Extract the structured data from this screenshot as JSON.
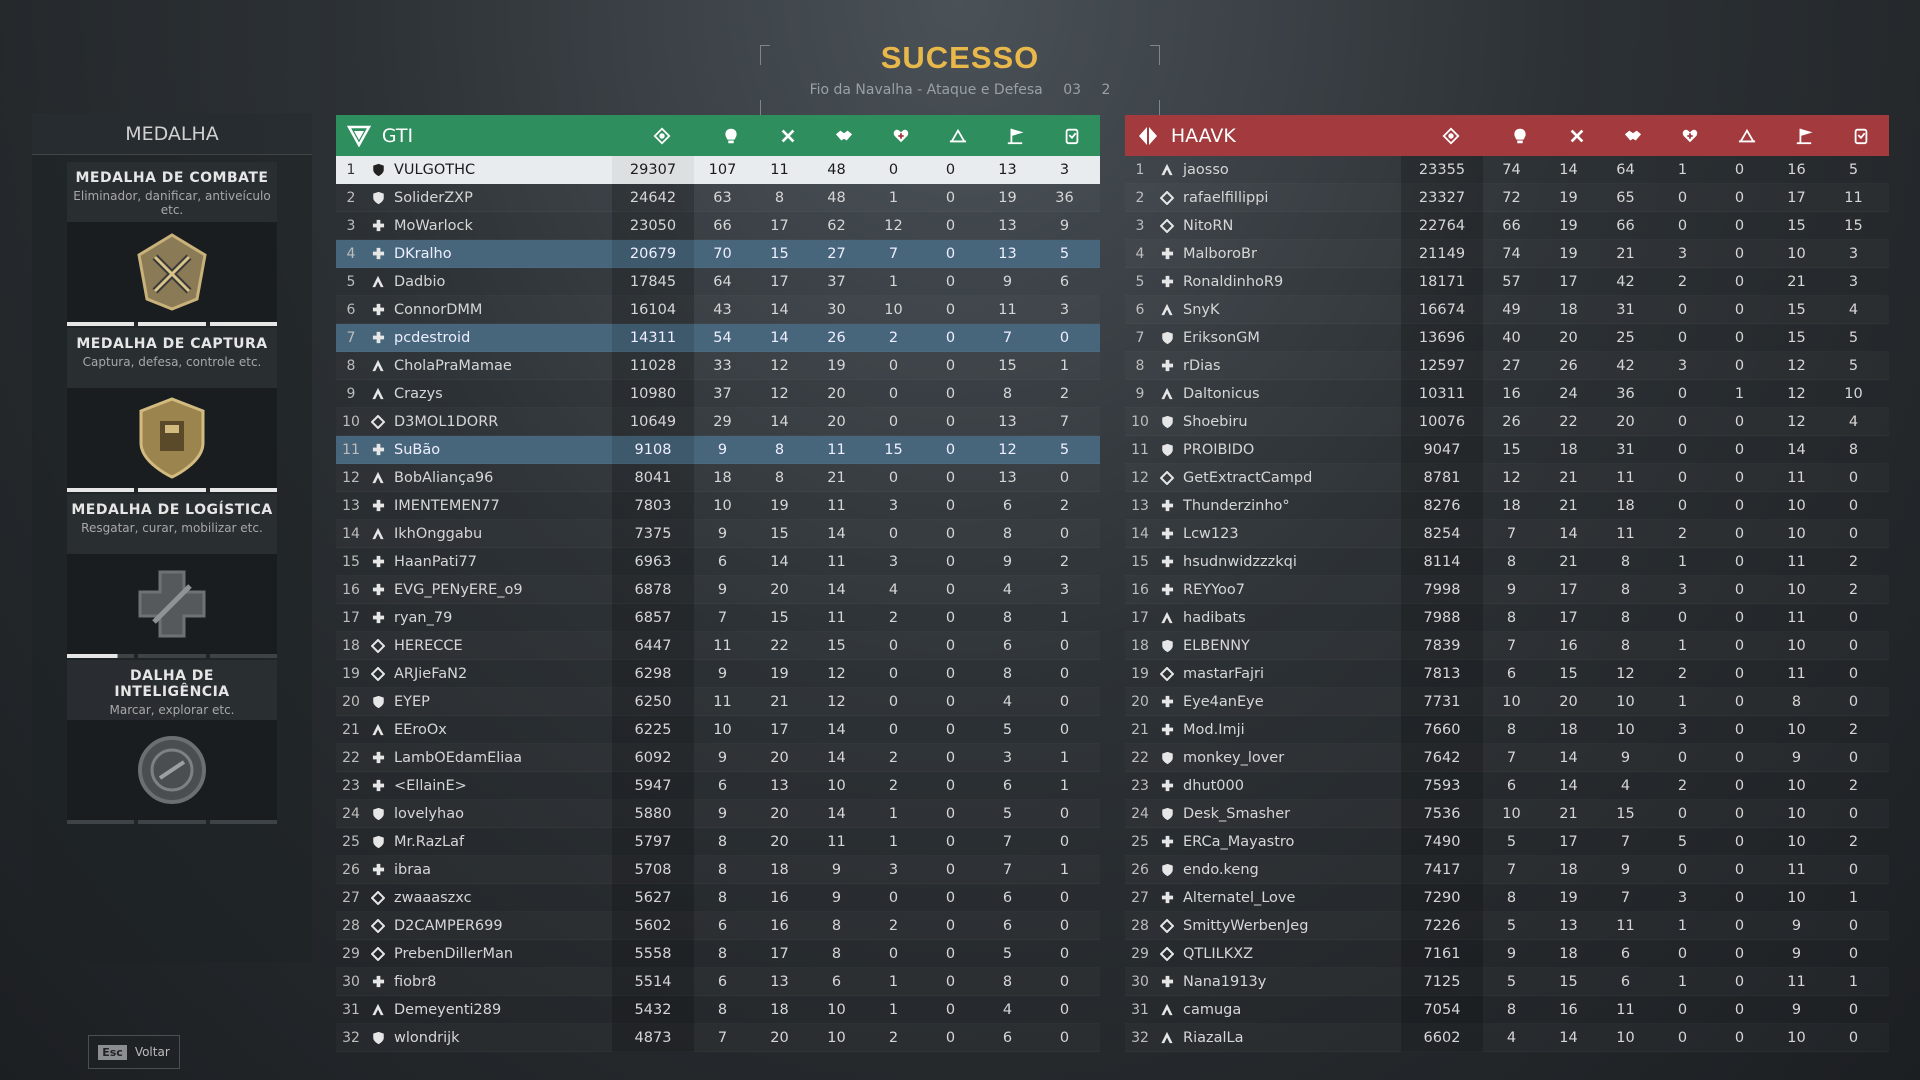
{
  "header": {
    "title": "SUCESSO",
    "mode": "Fio da Navalha - Ataque e Defesa",
    "score_a": "03",
    "score_b": "2"
  },
  "medals": {
    "header": "MEDALHA",
    "cards": [
      {
        "title": "MEDALHA DE COMBATE",
        "desc": "Eliminador, danificar, antiveículo etc.",
        "icon": "combat-medal-icon",
        "progress": [
          1,
          1,
          1
        ]
      },
      {
        "title": "MEDALHA DE CAPTURA",
        "desc": "Captura, defesa, controle etc.",
        "icon": "capture-medal-icon",
        "progress": [
          1,
          1,
          1
        ]
      },
      {
        "title": "MEDALHA DE LOGÍSTICA",
        "desc": "Resgatar, curar, mobilizar etc.",
        "icon": "logistics-medal-icon",
        "progress": [
          0.75,
          0,
          0
        ]
      },
      {
        "title": "DALHA DE INTELIGÊNCIA",
        "desc": "Marcar, explorar etc.",
        "icon": "intel-medal-icon",
        "progress": [
          0,
          0,
          0
        ]
      }
    ]
  },
  "footer": {
    "esc_key": "Esc",
    "back_label": "Voltar"
  },
  "columns": [
    "score-icon",
    "kills-icon",
    "deaths-icon",
    "assists-icon",
    "revives-icon",
    "captures-icon",
    "objective-icon",
    "vehicle-icon"
  ],
  "teams": [
    {
      "name": "GTI",
      "color": "#2f8e5e",
      "players": [
        {
          "rank": "1",
          "cls": "shield",
          "name": "VULGOTHC",
          "stats": [
            "29307",
            "107",
            "11",
            "48",
            "0",
            "0",
            "13",
            "3"
          ],
          "hl": "self"
        },
        {
          "rank": "2",
          "cls": "shield",
          "name": "SoliderZXP",
          "stats": [
            "24642",
            "63",
            "8",
            "48",
            "1",
            "0",
            "19",
            "36"
          ]
        },
        {
          "rank": "3",
          "cls": "medic",
          "name": "MoWarlock",
          "stats": [
            "23050",
            "66",
            "17",
            "62",
            "12",
            "0",
            "13",
            "9"
          ]
        },
        {
          "rank": "4",
          "cls": "medic",
          "name": "DKralho",
          "stats": [
            "20679",
            "70",
            "15",
            "27",
            "7",
            "0",
            "13",
            "5"
          ],
          "hl": "squad"
        },
        {
          "rank": "5",
          "cls": "assault",
          "name": "Dadbio",
          "stats": [
            "17845",
            "64",
            "17",
            "37",
            "1",
            "0",
            "9",
            "6"
          ]
        },
        {
          "rank": "6",
          "cls": "medic",
          "name": "ConnorDMM",
          "stats": [
            "16104",
            "43",
            "14",
            "30",
            "10",
            "0",
            "11",
            "3"
          ]
        },
        {
          "rank": "7",
          "cls": "medic",
          "name": "pcdestroid",
          "stats": [
            "14311",
            "54",
            "14",
            "26",
            "2",
            "0",
            "7",
            "0"
          ],
          "hl": "squad"
        },
        {
          "rank": "8",
          "cls": "assault",
          "name": "CholaPraMamae",
          "stats": [
            "11028",
            "33",
            "12",
            "19",
            "0",
            "0",
            "15",
            "1"
          ]
        },
        {
          "rank": "9",
          "cls": "assault",
          "name": "Crazys",
          "stats": [
            "10980",
            "37",
            "12",
            "20",
            "0",
            "0",
            "8",
            "2"
          ]
        },
        {
          "rank": "10",
          "cls": "recon",
          "name": "D3MOL1DORR",
          "stats": [
            "10649",
            "29",
            "14",
            "20",
            "0",
            "0",
            "13",
            "7"
          ]
        },
        {
          "rank": "11",
          "cls": "medic",
          "name": "SuBão",
          "stats": [
            "9108",
            "9",
            "8",
            "11",
            "15",
            "0",
            "12",
            "5"
          ],
          "hl": "squad"
        },
        {
          "rank": "12",
          "cls": "assault",
          "name": "BobAliança96",
          "stats": [
            "8041",
            "18",
            "8",
            "21",
            "0",
            "0",
            "13",
            "0"
          ]
        },
        {
          "rank": "13",
          "cls": "medic",
          "name": "IMENTEMEN77",
          "stats": [
            "7803",
            "10",
            "19",
            "11",
            "3",
            "0",
            "6",
            "2"
          ]
        },
        {
          "rank": "14",
          "cls": "assault",
          "name": "IkhOnggabu",
          "stats": [
            "7375",
            "9",
            "15",
            "14",
            "0",
            "0",
            "8",
            "0"
          ]
        },
        {
          "rank": "15",
          "cls": "medic",
          "name": "HaanPati77",
          "stats": [
            "6963",
            "6",
            "14",
            "11",
            "3",
            "0",
            "9",
            "2"
          ]
        },
        {
          "rank": "16",
          "cls": "medic",
          "name": "EVG_PENyERE_o9",
          "stats": [
            "6878",
            "9",
            "20",
            "14",
            "4",
            "0",
            "4",
            "3"
          ]
        },
        {
          "rank": "17",
          "cls": "medic",
          "name": "ryan_79",
          "stats": [
            "6857",
            "7",
            "15",
            "11",
            "2",
            "0",
            "8",
            "1"
          ]
        },
        {
          "rank": "18",
          "cls": "recon",
          "name": "HERECCE",
          "stats": [
            "6447",
            "11",
            "22",
            "15",
            "0",
            "0",
            "6",
            "0"
          ]
        },
        {
          "rank": "19",
          "cls": "recon",
          "name": "ARJieFaN2",
          "stats": [
            "6298",
            "9",
            "19",
            "12",
            "0",
            "0",
            "8",
            "0"
          ]
        },
        {
          "rank": "20",
          "cls": "shield",
          "name": "EYEP",
          "stats": [
            "6250",
            "11",
            "21",
            "12",
            "0",
            "0",
            "4",
            "0"
          ]
        },
        {
          "rank": "21",
          "cls": "assault",
          "name": "EEroOx",
          "stats": [
            "6225",
            "10",
            "17",
            "14",
            "0",
            "0",
            "5",
            "0"
          ]
        },
        {
          "rank": "22",
          "cls": "medic",
          "name": "LambOEdamEliaa",
          "stats": [
            "6092",
            "9",
            "20",
            "14",
            "2",
            "0",
            "3",
            "1"
          ]
        },
        {
          "rank": "23",
          "cls": "medic",
          "name": "<EllainE>",
          "stats": [
            "5947",
            "6",
            "13",
            "10",
            "2",
            "0",
            "6",
            "1"
          ]
        },
        {
          "rank": "24",
          "cls": "shield",
          "name": "lovelyhao",
          "stats": [
            "5880",
            "9",
            "20",
            "14",
            "1",
            "0",
            "5",
            "0"
          ]
        },
        {
          "rank": "25",
          "cls": "shield",
          "name": "Mr.RazLaf",
          "stats": [
            "5797",
            "8",
            "20",
            "11",
            "1",
            "0",
            "7",
            "0"
          ]
        },
        {
          "rank": "26",
          "cls": "medic",
          "name": "ibraa",
          "stats": [
            "5708",
            "8",
            "18",
            "9",
            "3",
            "0",
            "7",
            "1"
          ]
        },
        {
          "rank": "27",
          "cls": "recon",
          "name": "zwaaaszxc",
          "stats": [
            "5627",
            "8",
            "16",
            "9",
            "0",
            "0",
            "6",
            "0"
          ]
        },
        {
          "rank": "28",
          "cls": "recon",
          "name": "D2CAMPER699",
          "stats": [
            "5602",
            "6",
            "16",
            "8",
            "2",
            "0",
            "6",
            "0"
          ]
        },
        {
          "rank": "29",
          "cls": "recon",
          "name": "PrebenDillerMan",
          "stats": [
            "5558",
            "8",
            "17",
            "8",
            "0",
            "0",
            "5",
            "0"
          ]
        },
        {
          "rank": "30",
          "cls": "medic",
          "name": "fiobr8",
          "stats": [
            "5514",
            "6",
            "13",
            "6",
            "1",
            "0",
            "8",
            "0"
          ]
        },
        {
          "rank": "31",
          "cls": "assault",
          "name": "Demeyenti289",
          "stats": [
            "5432",
            "8",
            "18",
            "10",
            "1",
            "0",
            "4",
            "0"
          ]
        },
        {
          "rank": "32",
          "cls": "shield",
          "name": "wlondrijk",
          "stats": [
            "4873",
            "7",
            "20",
            "10",
            "2",
            "0",
            "6",
            "0"
          ]
        }
      ]
    },
    {
      "name": "HAAVK",
      "color": "#a23a3e",
      "players": [
        {
          "rank": "1",
          "cls": "assault",
          "name": "jaosso",
          "stats": [
            "23355",
            "74",
            "14",
            "64",
            "1",
            "0",
            "16",
            "5"
          ]
        },
        {
          "rank": "2",
          "cls": "recon",
          "name": "rafaelfillippi",
          "stats": [
            "23327",
            "72",
            "19",
            "65",
            "0",
            "0",
            "17",
            "11"
          ]
        },
        {
          "rank": "3",
          "cls": "recon",
          "name": "NitoRN",
          "stats": [
            "22764",
            "66",
            "19",
            "66",
            "0",
            "0",
            "15",
            "15"
          ]
        },
        {
          "rank": "4",
          "cls": "medic",
          "name": "MalboroBr",
          "stats": [
            "21149",
            "74",
            "19",
            "21",
            "3",
            "0",
            "10",
            "3"
          ]
        },
        {
          "rank": "5",
          "cls": "medic",
          "name": "RonaldinhoR9",
          "stats": [
            "18171",
            "57",
            "17",
            "42",
            "2",
            "0",
            "21",
            "3"
          ]
        },
        {
          "rank": "6",
          "cls": "assault",
          "name": "SnyK",
          "stats": [
            "16674",
            "49",
            "18",
            "31",
            "0",
            "0",
            "15",
            "4"
          ]
        },
        {
          "rank": "7",
          "cls": "shield",
          "name": "EriksonGM",
          "stats": [
            "13696",
            "40",
            "20",
            "25",
            "0",
            "0",
            "15",
            "5"
          ]
        },
        {
          "rank": "8",
          "cls": "medic",
          "name": "rDias",
          "stats": [
            "12597",
            "27",
            "26",
            "42",
            "3",
            "0",
            "12",
            "5"
          ]
        },
        {
          "rank": "9",
          "cls": "assault",
          "name": "Daltonicus",
          "stats": [
            "10311",
            "16",
            "24",
            "36",
            "0",
            "1",
            "12",
            "10"
          ]
        },
        {
          "rank": "10",
          "cls": "shield",
          "name": "Shoebiru",
          "stats": [
            "10076",
            "26",
            "22",
            "20",
            "0",
            "0",
            "12",
            "4"
          ]
        },
        {
          "rank": "11",
          "cls": "shield",
          "name": "PROIBIDO",
          "stats": [
            "9047",
            "15",
            "18",
            "31",
            "0",
            "0",
            "14",
            "8"
          ]
        },
        {
          "rank": "12",
          "cls": "recon",
          "name": "GetExtractCampd",
          "stats": [
            "8781",
            "12",
            "21",
            "11",
            "0",
            "0",
            "11",
            "0"
          ]
        },
        {
          "rank": "13",
          "cls": "medic",
          "name": "Thunderzinho°",
          "stats": [
            "8276",
            "18",
            "21",
            "18",
            "0",
            "0",
            "10",
            "0"
          ]
        },
        {
          "rank": "14",
          "cls": "medic",
          "name": "Lcw123",
          "stats": [
            "8254",
            "7",
            "14",
            "11",
            "2",
            "0",
            "10",
            "0"
          ]
        },
        {
          "rank": "15",
          "cls": "medic",
          "name": "hsudnwidzzzkqi",
          "stats": [
            "8114",
            "8",
            "21",
            "8",
            "1",
            "0",
            "11",
            "2"
          ]
        },
        {
          "rank": "16",
          "cls": "medic",
          "name": "REYYoo7",
          "stats": [
            "7998",
            "9",
            "17",
            "8",
            "3",
            "0",
            "10",
            "2"
          ]
        },
        {
          "rank": "17",
          "cls": "assault",
          "name": "hadibats",
          "stats": [
            "7988",
            "8",
            "17",
            "8",
            "0",
            "0",
            "11",
            "0"
          ]
        },
        {
          "rank": "18",
          "cls": "shield",
          "name": "ELBENNY",
          "stats": [
            "7839",
            "7",
            "16",
            "8",
            "1",
            "0",
            "10",
            "0"
          ]
        },
        {
          "rank": "19",
          "cls": "recon",
          "name": "mastarFajri",
          "stats": [
            "7813",
            "6",
            "15",
            "12",
            "2",
            "0",
            "11",
            "0"
          ]
        },
        {
          "rank": "20",
          "cls": "medic",
          "name": "Eye4anEye",
          "stats": [
            "7731",
            "10",
            "20",
            "10",
            "1",
            "0",
            "8",
            "0"
          ]
        },
        {
          "rank": "21",
          "cls": "medic",
          "name": "Mod.Imji",
          "stats": [
            "7660",
            "8",
            "18",
            "10",
            "3",
            "0",
            "10",
            "2"
          ]
        },
        {
          "rank": "22",
          "cls": "shield",
          "name": "monkey_lover",
          "stats": [
            "7642",
            "7",
            "14",
            "9",
            "0",
            "0",
            "9",
            "0"
          ]
        },
        {
          "rank": "23",
          "cls": "medic",
          "name": "dhut000",
          "stats": [
            "7593",
            "6",
            "14",
            "4",
            "2",
            "0",
            "10",
            "2"
          ]
        },
        {
          "rank": "24",
          "cls": "shield",
          "name": "Desk_Smasher",
          "stats": [
            "7536",
            "10",
            "21",
            "15",
            "0",
            "0",
            "10",
            "0"
          ]
        },
        {
          "rank": "25",
          "cls": "medic",
          "name": "ERCa_Mayastro",
          "stats": [
            "7490",
            "5",
            "17",
            "7",
            "5",
            "0",
            "10",
            "2"
          ]
        },
        {
          "rank": "26",
          "cls": "shield",
          "name": "endo.keng",
          "stats": [
            "7417",
            "7",
            "18",
            "9",
            "0",
            "0",
            "11",
            "0"
          ]
        },
        {
          "rank": "27",
          "cls": "medic",
          "name": "Alternatel_Love",
          "stats": [
            "7290",
            "8",
            "19",
            "7",
            "3",
            "0",
            "10",
            "1"
          ]
        },
        {
          "rank": "28",
          "cls": "recon",
          "name": "SmittyWerbenJeg",
          "stats": [
            "7226",
            "5",
            "13",
            "11",
            "1",
            "0",
            "9",
            "0"
          ]
        },
        {
          "rank": "29",
          "cls": "recon",
          "name": "QTLILKXZ",
          "stats": [
            "7161",
            "9",
            "18",
            "6",
            "0",
            "0",
            "9",
            "0"
          ]
        },
        {
          "rank": "30",
          "cls": "medic",
          "name": "Nana1913y",
          "stats": [
            "7125",
            "5",
            "15",
            "6",
            "1",
            "0",
            "11",
            "1"
          ]
        },
        {
          "rank": "31",
          "cls": "assault",
          "name": "camuga",
          "stats": [
            "7054",
            "8",
            "16",
            "11",
            "0",
            "0",
            "9",
            "0"
          ]
        },
        {
          "rank": "32",
          "cls": "assault",
          "name": "RiazalLa",
          "stats": [
            "6602",
            "4",
            "14",
            "10",
            "0",
            "0",
            "10",
            "0"
          ]
        }
      ]
    }
  ]
}
